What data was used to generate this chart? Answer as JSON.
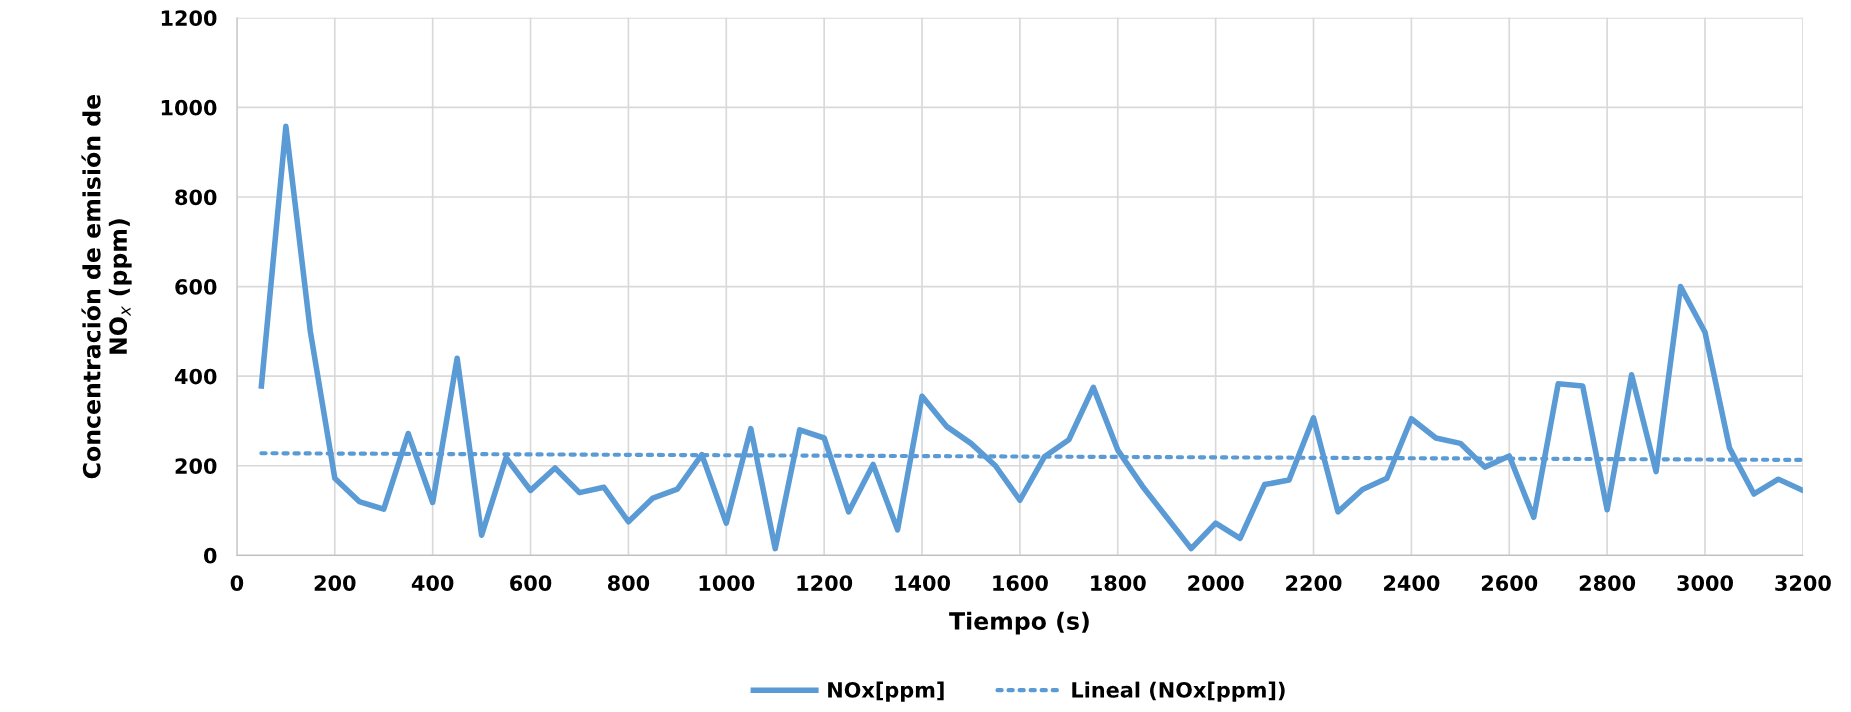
{
  "chart_data": {
    "type": "line",
    "xlabel": "Tiempo (s)",
    "ylabel": "Concentración de emisión de\nNO$_{x}$ (ppm)",
    "x": [
      50,
      100,
      150,
      200,
      250,
      300,
      350,
      400,
      450,
      500,
      550,
      600,
      650,
      700,
      750,
      800,
      850,
      900,
      950,
      1000,
      1050,
      1100,
      1150,
      1200,
      1250,
      1300,
      1350,
      1400,
      1450,
      1500,
      1550,
      1600,
      1650,
      1700,
      1750,
      1800,
      1850,
      1900,
      1950,
      2000,
      2050,
      2100,
      2150,
      2200,
      2250,
      2300,
      2350,
      2400,
      2450,
      2500,
      2550,
      2600,
      2650,
      2700,
      2750,
      2800,
      2850,
      2900,
      2950,
      3000,
      3050,
      3100,
      3150,
      3200
    ],
    "series": [
      {
        "name": "NOx[ppm]",
        "color": "#5b9bd5",
        "line_style": "solid",
        "values": [
          378,
          958,
          500,
          172,
          120,
          103,
          272,
          118,
          440,
          45,
          218,
          145,
          195,
          140,
          152,
          75,
          128,
          148,
          225,
          72,
          283,
          15,
          280,
          262,
          97,
          203,
          57,
          355,
          288,
          250,
          200,
          123,
          220,
          258,
          375,
          235,
          155,
          85,
          15,
          72,
          38,
          158,
          168,
          307,
          97,
          147,
          172,
          305,
          262,
          250,
          197,
          222,
          85,
          383,
          378,
          102,
          403,
          187,
          600,
          498,
          240,
          137,
          170,
          145
        ]
      },
      {
        "name": "Lineal (NOx[ppm])",
        "color": "#5b9bd5",
        "line_style": "dotted",
        "x": [
          50,
          3200
        ],
        "values": [
          228,
          213
        ]
      }
    ],
    "xlim": [
      0,
      3200
    ],
    "xticks": [
      0,
      200,
      400,
      600,
      800,
      1000,
      1200,
      1400,
      1600,
      1800,
      2000,
      2200,
      2400,
      2600,
      2800,
      3000,
      3200
    ],
    "ylim": [
      0,
      1200
    ],
    "yticks": [
      0,
      200,
      400,
      600,
      800,
      1000,
      1200
    ],
    "grid": true,
    "legend": "bottom",
    "marker": "none"
  }
}
